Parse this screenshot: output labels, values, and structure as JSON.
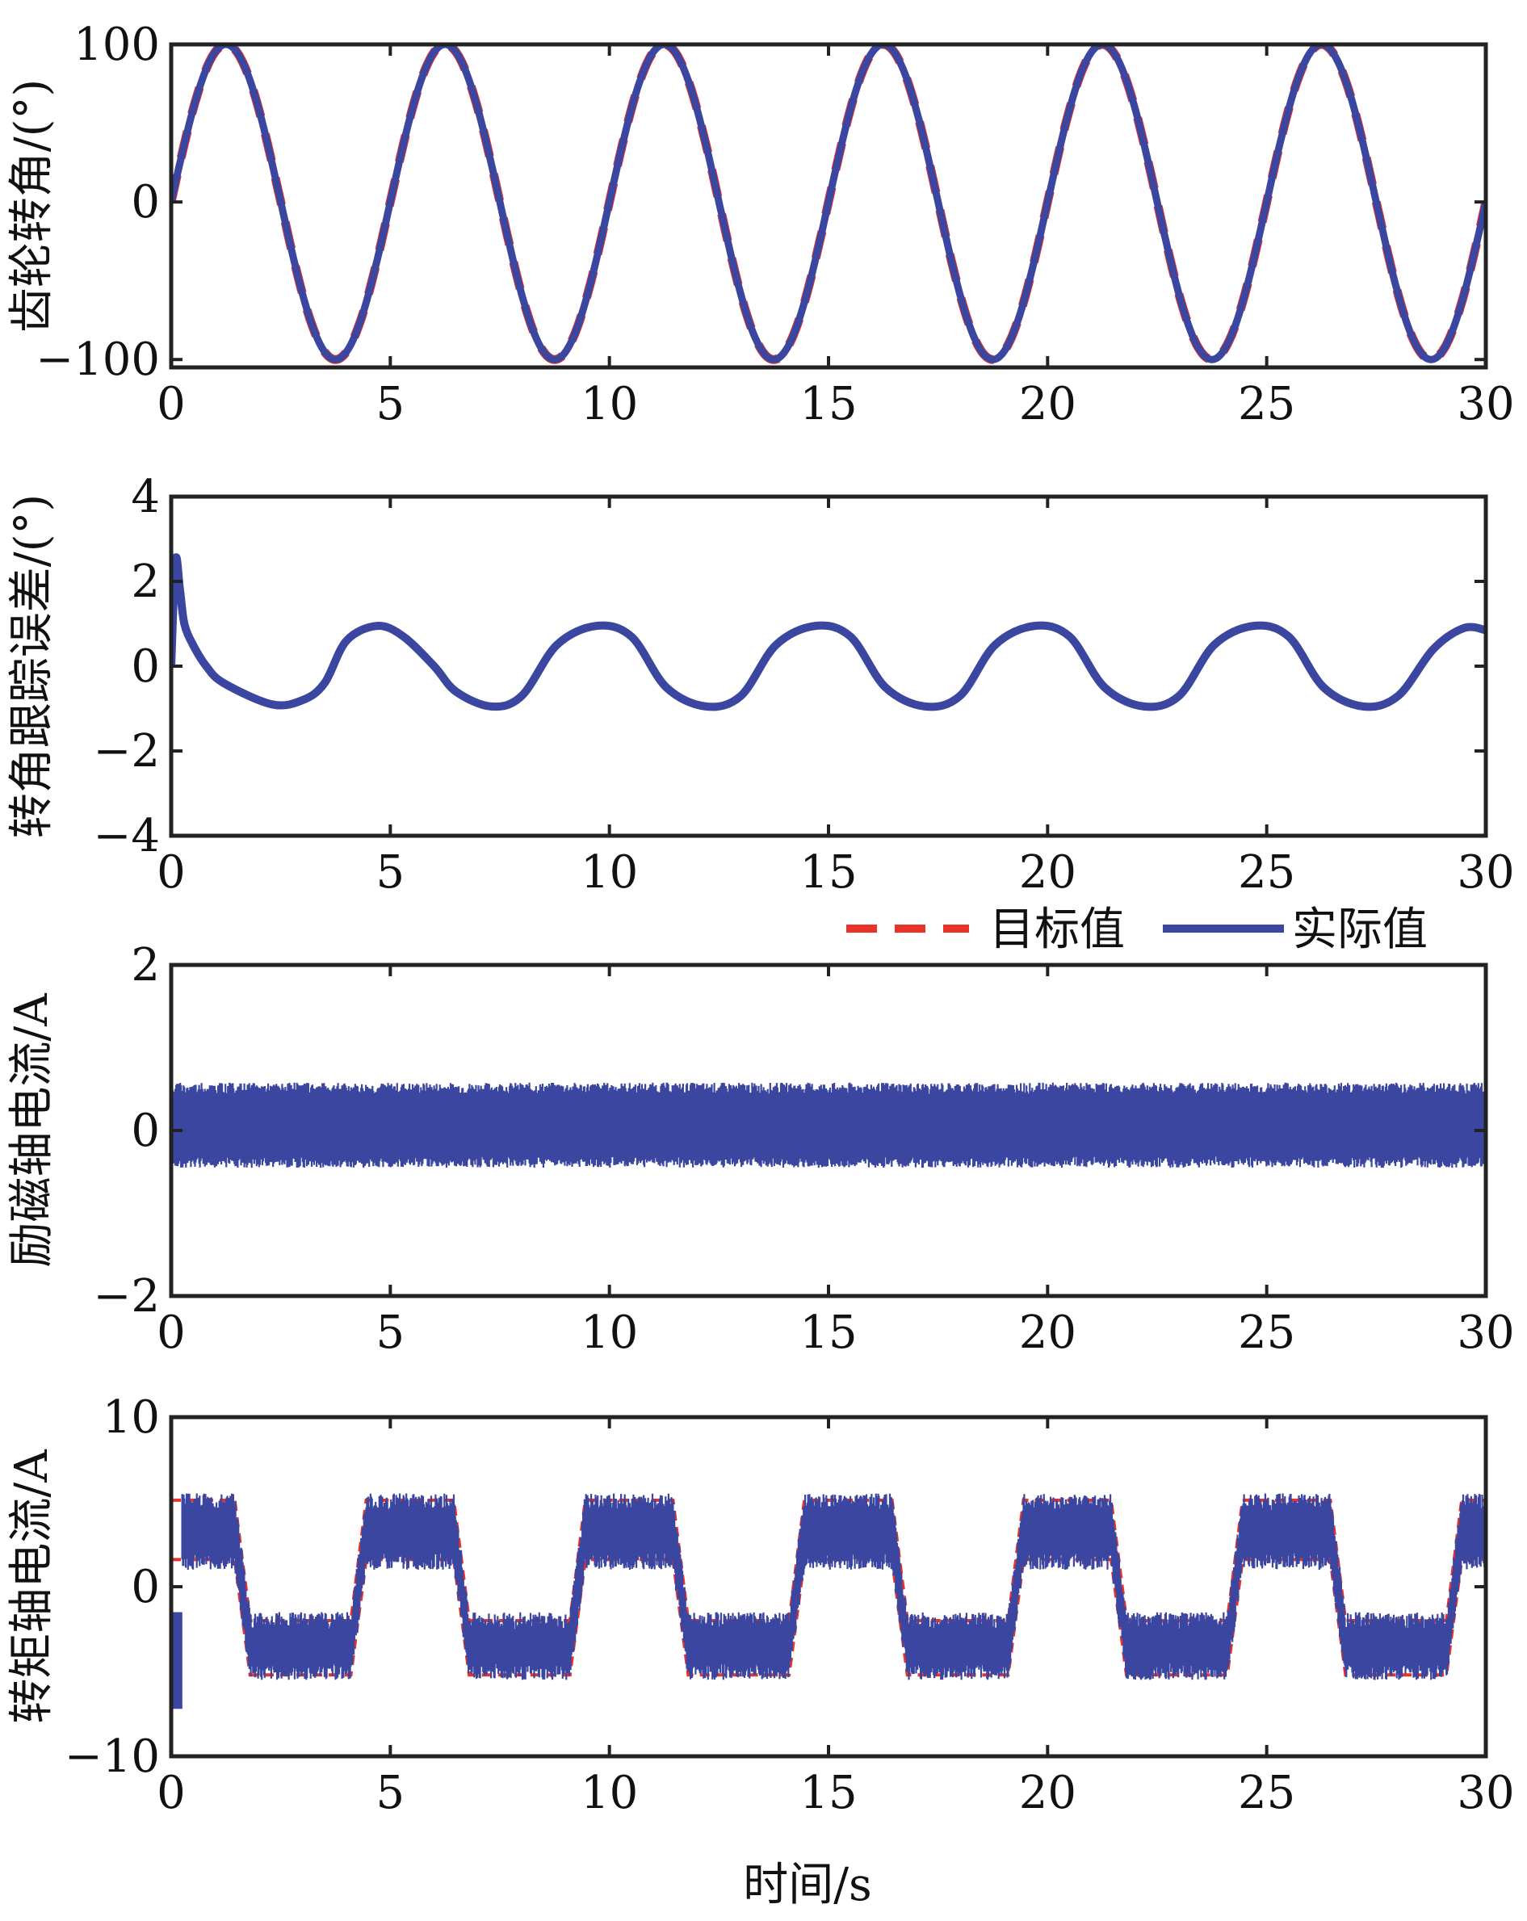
{
  "colors": {
    "target": "#e8322a",
    "actual": "#3a46a0",
    "axis": "#222222"
  },
  "legend": {
    "target_label": "目标值",
    "actual_label": "实际值",
    "placement": "above-panel-3"
  },
  "xlabel": "时间/s",
  "chart_data": [
    {
      "type": "line",
      "ylabel": "齿轮转角/(°)",
      "xlim": [
        0,
        30
      ],
      "ylim": [
        -105,
        100
      ],
      "xticks": [
        0,
        5,
        10,
        15,
        20,
        25,
        30
      ],
      "xtick_labels": [
        "0",
        "5",
        "10",
        "15",
        "20",
        "25",
        "30"
      ],
      "yticks": [
        100,
        0,
        -100
      ],
      "ytick_labels": [
        "100",
        "0",
        "−100"
      ],
      "series": [
        {
          "name": "目标值",
          "style": "dashed",
          "signal": "sine",
          "amplitude": 100,
          "period": 5,
          "offset": 0
        },
        {
          "name": "实际值",
          "style": "solid",
          "signal": "sine",
          "amplitude": 100,
          "period": 5,
          "offset": 0
        }
      ]
    },
    {
      "type": "line",
      "ylabel": "转角跟踪误差/(°)",
      "xlim": [
        0,
        30
      ],
      "ylim": [
        -4,
        4
      ],
      "xticks": [
        0,
        5,
        10,
        15,
        20,
        25,
        30
      ],
      "xtick_labels": [
        "0",
        "5",
        "10",
        "15",
        "20",
        "25",
        "30"
      ],
      "yticks": [
        4,
        2,
        0,
        -2,
        -4
      ],
      "ytick_labels": [
        "4",
        "2",
        "0",
        "−2",
        "−4"
      ],
      "series": [
        {
          "name": "实际值",
          "style": "solid",
          "x": [
            0,
            0.1,
            0.2,
            0.3,
            0.5,
            0.8,
            1.2,
            2.3,
            3.0,
            3.5,
            4.0,
            4.7,
            5.3,
            6.0,
            6.5,
            7.3,
            8.0,
            8.8,
            9.7,
            10.5,
            11.3,
            12.2,
            13.0,
            13.8,
            14.7,
            15.5,
            16.3,
            17.2,
            18.0,
            18.8,
            19.7,
            20.5,
            21.3,
            22.2,
            23.0,
            23.8,
            24.7,
            25.5,
            26.3,
            27.2,
            28.0,
            28.8,
            29.5,
            30.0
          ],
          "y": [
            0,
            2.5,
            1.8,
            1.0,
            0.5,
            0.0,
            -0.4,
            -0.9,
            -0.8,
            -0.4,
            0.6,
            0.95,
            0.7,
            0.0,
            -0.6,
            -0.95,
            -0.7,
            0.5,
            0.95,
            0.7,
            -0.5,
            -0.95,
            -0.7,
            0.5,
            0.95,
            0.7,
            -0.5,
            -0.95,
            -0.7,
            0.5,
            0.95,
            0.7,
            -0.5,
            -0.95,
            -0.7,
            0.5,
            0.95,
            0.7,
            -0.5,
            -0.95,
            -0.7,
            0.4,
            0.9,
            0.85
          ]
        }
      ]
    },
    {
      "type": "line",
      "ylabel": "励磁轴电流/A",
      "xlim": [
        0,
        30
      ],
      "ylim": [
        -2,
        2
      ],
      "xticks": [
        0,
        5,
        10,
        15,
        20,
        25,
        30
      ],
      "xtick_labels": [
        "0",
        "5",
        "10",
        "15",
        "20",
        "25",
        "30"
      ],
      "yticks": [
        2,
        0,
        -2
      ],
      "ytick_labels": [
        "2",
        "0",
        "−2"
      ],
      "series": [
        {
          "name": "目标值",
          "style": "dashed",
          "signal": "constant",
          "value": 0
        },
        {
          "name": "实际值",
          "style": "solid",
          "signal": "band",
          "band": [
            -0.45,
            0.55
          ]
        }
      ]
    },
    {
      "type": "line",
      "ylabel": "转矩轴电流/A",
      "xlim": [
        0,
        30
      ],
      "ylim": [
        -10,
        10
      ],
      "xticks": [
        0,
        5,
        10,
        15,
        20,
        25,
        30
      ],
      "xtick_labels": [
        "0",
        "5",
        "10",
        "15",
        "20",
        "25",
        "30"
      ],
      "yticks": [
        10,
        0,
        -10
      ],
      "ytick_labels": [
        "10",
        "0",
        "−10"
      ],
      "series": [
        {
          "name": "目标值",
          "style": "dashed",
          "signal": "square-ish",
          "high": 3.2,
          "low": -3.5,
          "period": 5
        },
        {
          "name": "实际值",
          "style": "solid",
          "signal": "square-ish-band",
          "high_band": [
            1.5,
            5.0
          ],
          "low_band": [
            -5.0,
            -2.0
          ],
          "period": 5
        }
      ]
    }
  ]
}
